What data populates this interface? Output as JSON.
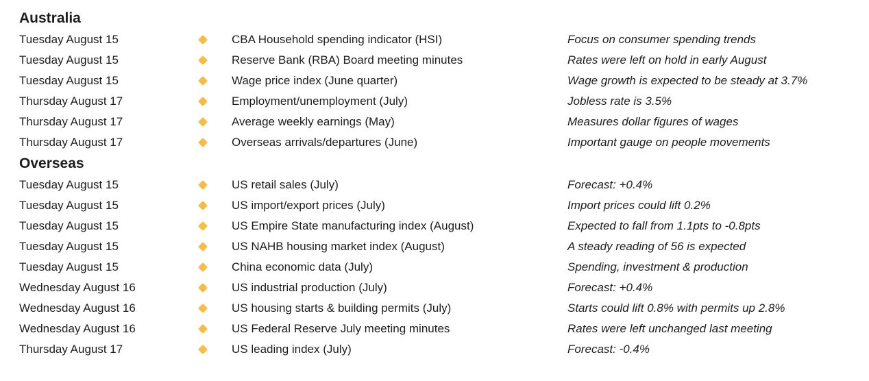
{
  "theme": {
    "background": "#ffffff",
    "text_color": "#1d1d1d",
    "bullet_color": "#F9BC42",
    "bullet_icon": "diamond-icon"
  },
  "sections": [
    {
      "title": "Australia",
      "rows": [
        {
          "date": "Tuesday August 15",
          "event": "CBA Household spending indicator (HSI)",
          "note": "Focus on consumer spending trends"
        },
        {
          "date": "Tuesday August 15",
          "event": "Reserve Bank (RBA) Board meeting minutes",
          "note": "Rates were left on hold in early August"
        },
        {
          "date": "Tuesday August 15",
          "event": "Wage price index (June quarter)",
          "note": "Wage growth is expected to be steady at 3.7%"
        },
        {
          "date": "Thursday August 17",
          "event": "Employment/unemployment (July)",
          "note": "Jobless rate is 3.5%"
        },
        {
          "date": "Thursday August 17",
          "event": "Average weekly earnings (May)",
          "note": "Measures dollar figures of wages"
        },
        {
          "date": "Thursday August 17",
          "event": "Overseas arrivals/departures (June)",
          "note": "Important gauge on people movements"
        }
      ]
    },
    {
      "title": "Overseas",
      "rows": [
        {
          "date": "Tuesday August 15",
          "event": "US retail sales (July)",
          "note": "Forecast: +0.4%"
        },
        {
          "date": "Tuesday August 15",
          "event": "US import/export prices (July)",
          "note": "Import prices could lift 0.2%"
        },
        {
          "date": "Tuesday August 15",
          "event": "US Empire State manufacturing index (August)",
          "note": "Expected to fall from 1.1pts to -0.8pts"
        },
        {
          "date": "Tuesday August 15",
          "event": "US NAHB housing market index (August)",
          "note": "A steady reading of 56 is expected"
        },
        {
          "date": "Tuesday August 15",
          "event": "China economic data (July)",
          "note": "Spending, investment & production"
        },
        {
          "date": "Wednesday August 16",
          "event": "US industrial production (July)",
          "note": "Forecast: +0.4%"
        },
        {
          "date": "Wednesday August 16",
          "event": "US housing starts & building permits (July)",
          "note": "Starts could lift 0.8% with permits up 2.8%"
        },
        {
          "date": "Wednesday August 16",
          "event": "US Federal Reserve July meeting minutes",
          "note": "Rates were left unchanged last meeting"
        },
        {
          "date": "Thursday August 17",
          "event": "US leading index (July)",
          "note": "Forecast: -0.4%"
        }
      ]
    }
  ]
}
